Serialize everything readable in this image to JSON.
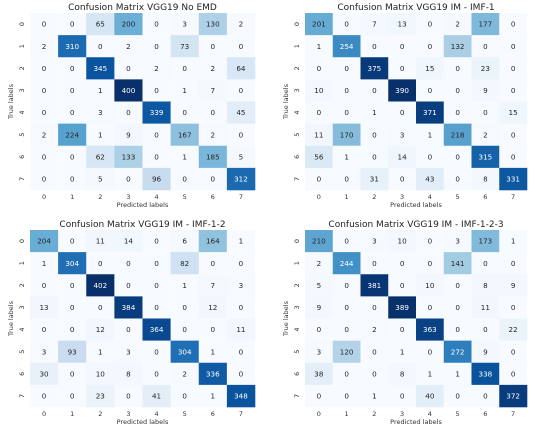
{
  "chart_data": [
    {
      "type": "heatmap",
      "title": "Confusion Matrix VGG19 No EMD",
      "xlabel": "Predicted labels",
      "ylabel": "True labels",
      "x_ticks": [
        "0",
        "1",
        "2",
        "3",
        "4",
        "5",
        "6",
        "7"
      ],
      "y_ticks": [
        "0",
        "1",
        "2",
        "3",
        "4",
        "5",
        "6",
        "7"
      ],
      "colormap": "Blues",
      "matrix": [
        [
          0,
          0,
          65,
          200,
          0,
          3,
          130,
          2
        ],
        [
          2,
          310,
          0,
          2,
          0,
          73,
          0,
          0
        ],
        [
          0,
          0,
          345,
          0,
          2,
          0,
          2,
          64
        ],
        [
          0,
          0,
          1,
          400,
          0,
          1,
          7,
          0
        ],
        [
          0,
          0,
          3,
          0,
          339,
          0,
          0,
          45
        ],
        [
          2,
          224,
          1,
          9,
          0,
          167,
          2,
          0
        ],
        [
          0,
          0,
          62,
          133,
          0,
          1,
          185,
          5
        ],
        [
          0,
          0,
          5,
          0,
          96,
          0,
          0,
          312
        ]
      ]
    },
    {
      "type": "heatmap",
      "title": "Confusion Matrix VGG19 IM - IMF-1",
      "xlabel": "Predicted labels",
      "ylabel": "True labels",
      "x_ticks": [
        "0",
        "1",
        "2",
        "3",
        "4",
        "5",
        "6",
        "7"
      ],
      "y_ticks": [
        "0",
        "1",
        "2",
        "3",
        "4",
        "5",
        "6",
        "7"
      ],
      "colormap": "Blues",
      "matrix": [
        [
          201,
          0,
          7,
          13,
          0,
          2,
          177,
          0
        ],
        [
          1,
          254,
          0,
          0,
          0,
          132,
          0,
          0
        ],
        [
          0,
          0,
          375,
          0,
          15,
          0,
          23,
          0
        ],
        [
          10,
          0,
          0,
          390,
          0,
          0,
          9,
          0
        ],
        [
          0,
          0,
          1,
          0,
          371,
          0,
          0,
          15
        ],
        [
          11,
          170,
          0,
          3,
          1,
          218,
          2,
          0
        ],
        [
          56,
          1,
          0,
          14,
          0,
          0,
          315,
          0
        ],
        [
          0,
          0,
          31,
          0,
          43,
          0,
          8,
          331
        ]
      ]
    },
    {
      "type": "heatmap",
      "title": "Confusion Matrix VGG19 IM - IMF-1-2",
      "xlabel": "Predicted labels",
      "ylabel": "True labels",
      "x_ticks": [
        "0",
        "1",
        "2",
        "3",
        "4",
        "5",
        "6",
        "7"
      ],
      "y_ticks": [
        "0",
        "1",
        "2",
        "3",
        "4",
        "5",
        "6",
        "7"
      ],
      "colormap": "Blues",
      "matrix": [
        [
          204,
          0,
          11,
          14,
          0,
          6,
          164,
          1
        ],
        [
          1,
          304,
          0,
          0,
          0,
          82,
          0,
          0
        ],
        [
          0,
          0,
          402,
          0,
          0,
          1,
          7,
          3
        ],
        [
          13,
          0,
          0,
          384,
          0,
          0,
          12,
          0
        ],
        [
          0,
          0,
          12,
          0,
          364,
          0,
          0,
          11
        ],
        [
          3,
          93,
          1,
          3,
          0,
          304,
          1,
          0
        ],
        [
          30,
          0,
          10,
          8,
          0,
          2,
          336,
          0
        ],
        [
          0,
          0,
          23,
          0,
          41,
          0,
          1,
          348
        ]
      ]
    },
    {
      "type": "heatmap",
      "title": "Confusion Matrix VGG19 IM - IMF-1-2-3",
      "xlabel": "Predicted labels",
      "ylabel": "True labels",
      "x_ticks": [
        "0",
        "1",
        "2",
        "3",
        "4",
        "5",
        "6",
        "7"
      ],
      "y_ticks": [
        "0",
        "1",
        "2",
        "3",
        "4",
        "5",
        "6",
        "7"
      ],
      "colormap": "Blues",
      "matrix": [
        [
          210,
          0,
          3,
          10,
          0,
          3,
          173,
          1
        ],
        [
          2,
          244,
          0,
          0,
          0,
          141,
          0,
          0
        ],
        [
          5,
          0,
          381,
          0,
          10,
          0,
          8,
          9
        ],
        [
          9,
          0,
          0,
          389,
          0,
          0,
          11,
          0
        ],
        [
          0,
          0,
          2,
          0,
          363,
          0,
          0,
          22
        ],
        [
          3,
          120,
          0,
          1,
          0,
          272,
          9,
          0
        ],
        [
          38,
          0,
          0,
          8,
          1,
          1,
          338,
          0
        ],
        [
          0,
          0,
          1,
          0,
          40,
          0,
          0,
          372
        ]
      ]
    }
  ]
}
